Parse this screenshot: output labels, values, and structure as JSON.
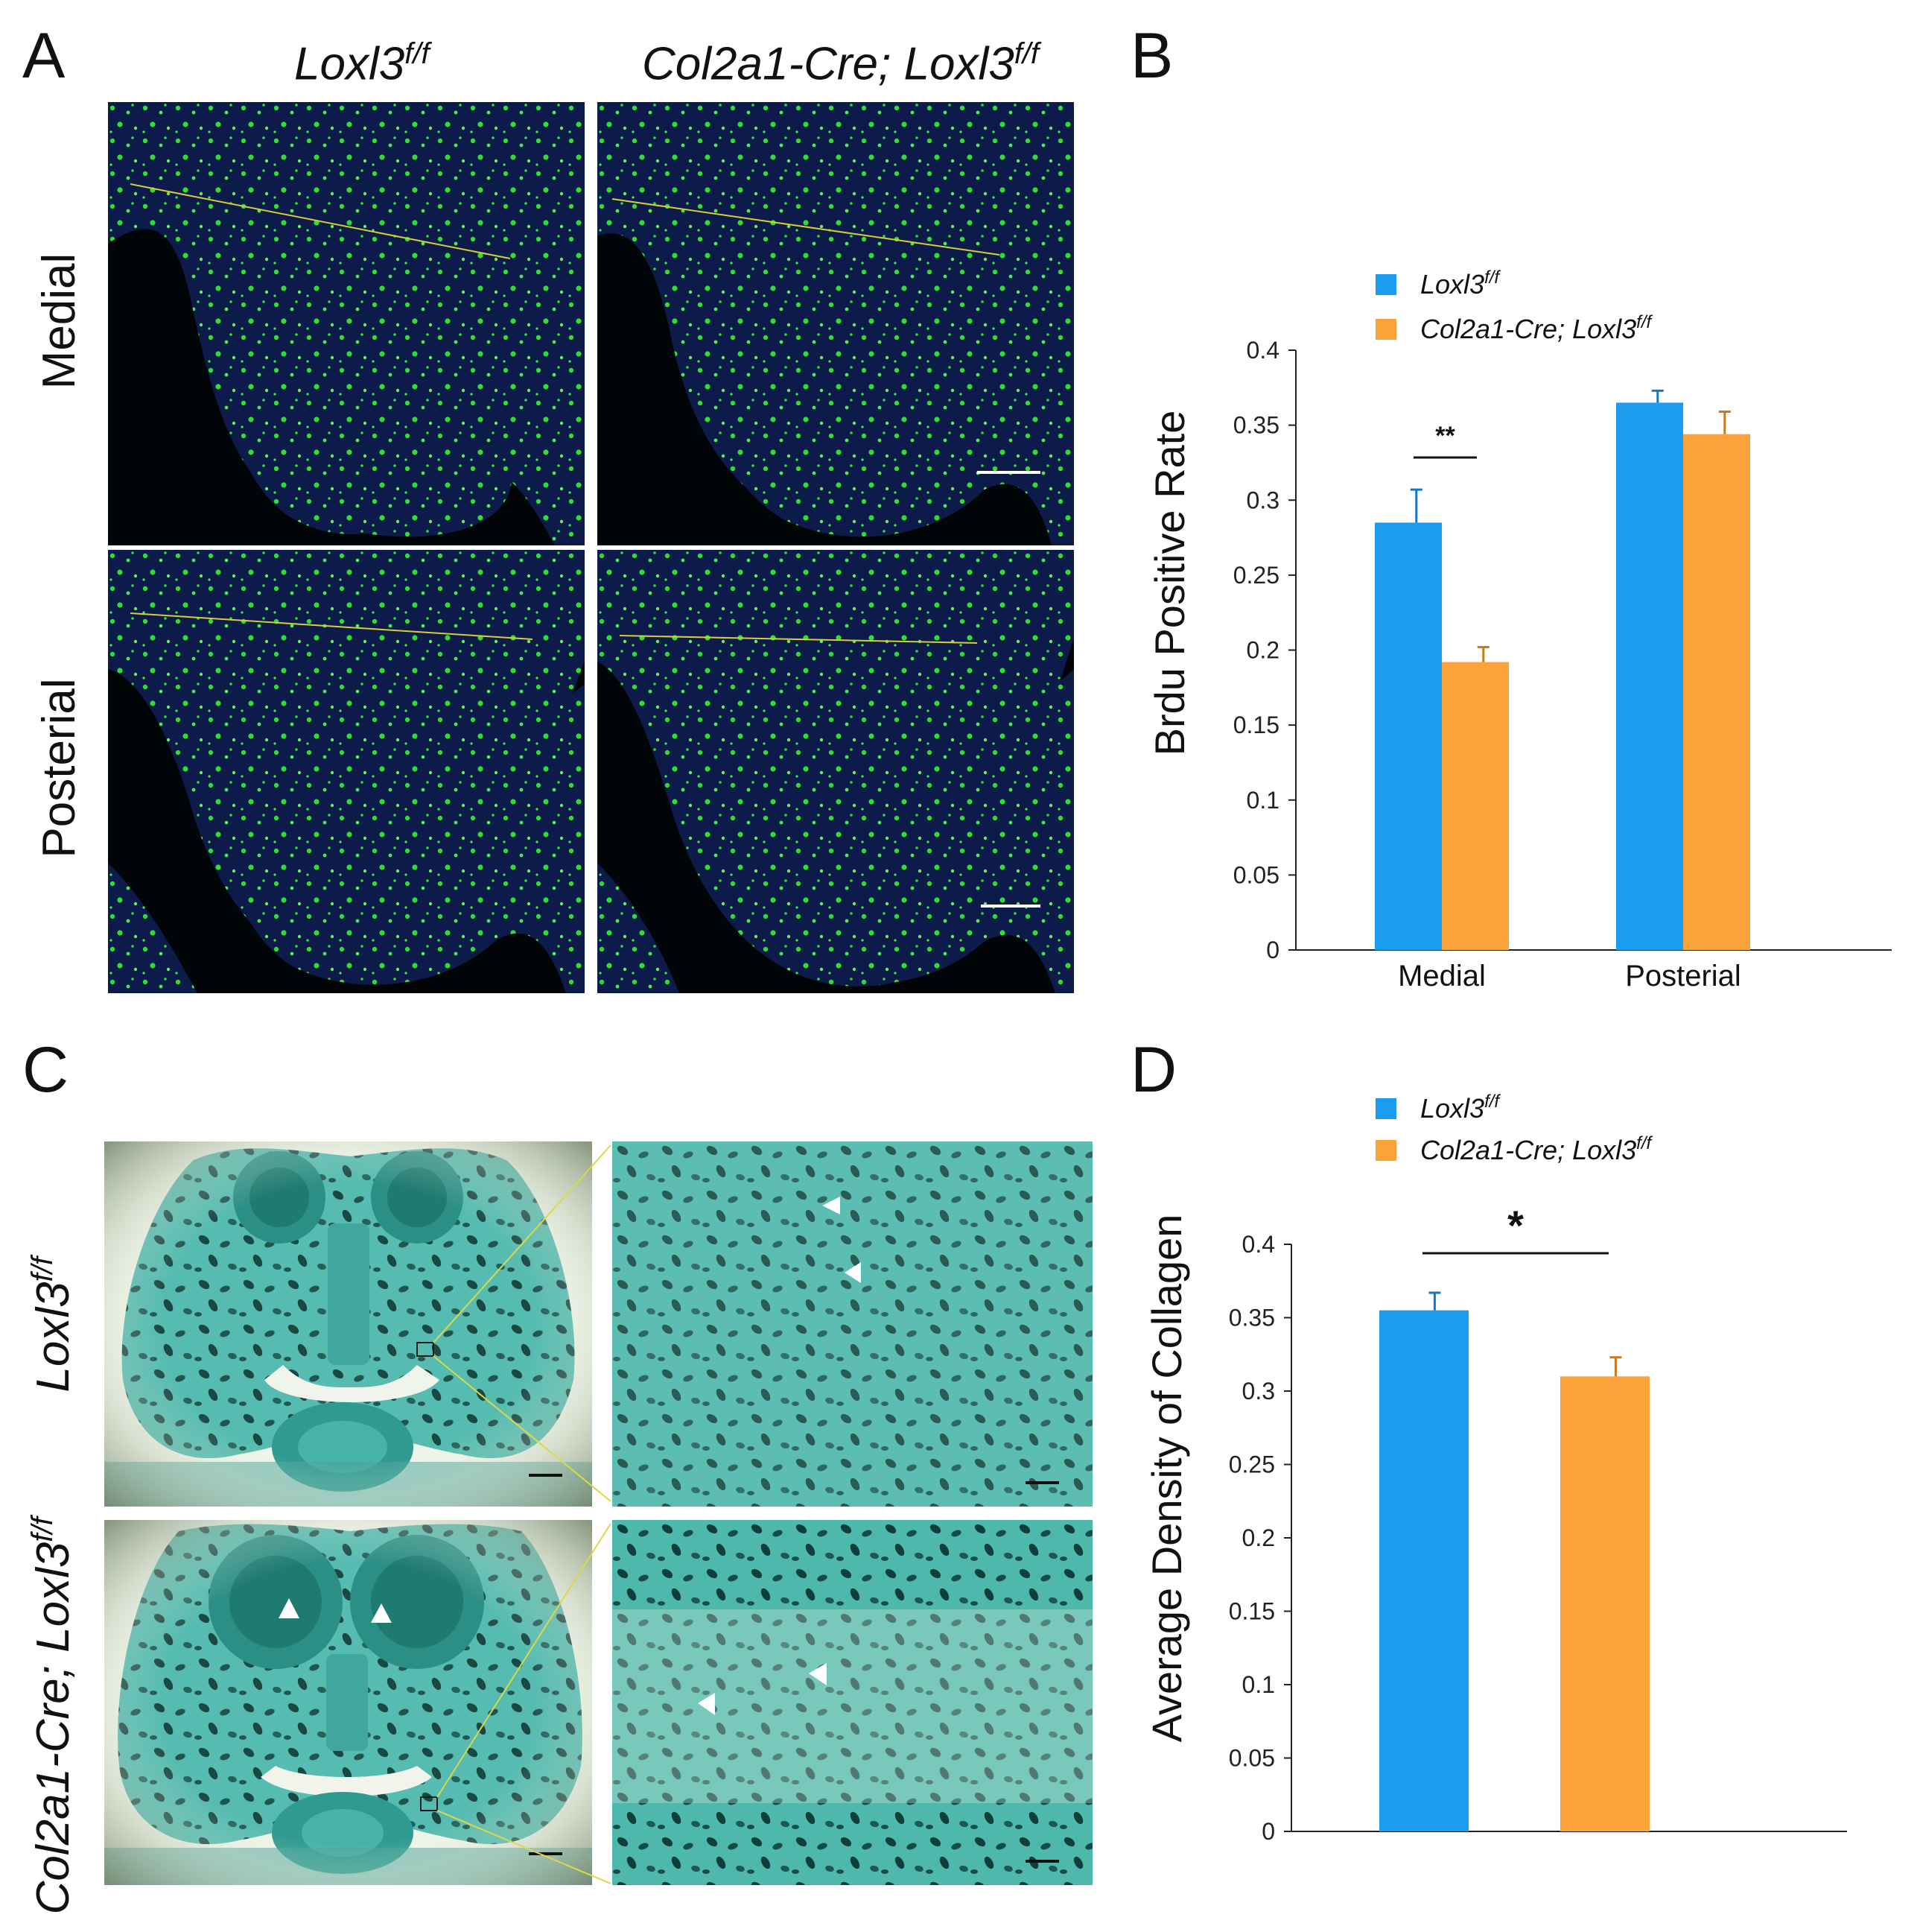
{
  "panels": {
    "a": {
      "letter": "A",
      "columns": [
        "Loxl3",
        "Col2a1-Cre; Loxl3"
      ],
      "column_superscript": "f/f",
      "rows": [
        "Medial",
        "Posterial"
      ]
    },
    "b": {
      "letter": "B"
    },
    "c": {
      "letter": "C",
      "rows": [
        "Loxl3",
        "Col2a1-Cre; Loxl3"
      ],
      "row_superscript": "f/f"
    },
    "d": {
      "letter": "D"
    }
  },
  "colors": {
    "series1": "#1a9cf0",
    "series2": "#fba23a",
    "fluor_green": "#2ee02e",
    "fluor_blue": "#0c1b4a",
    "stain_teal": "#3aa9a0",
    "stain_dark": "#0f3f3a",
    "guide_line": "#d6cd3a"
  },
  "chart_data": [
    {
      "type": "bar",
      "categories": [
        "Medial",
        "Posterial"
      ],
      "series": [
        {
          "name": "Loxl3",
          "name_sup": "f/f",
          "values": [
            0.285,
            0.365
          ],
          "errors": [
            0.022,
            0.008
          ]
        },
        {
          "name": "Col2a1-Cre; Loxl3",
          "name_sup": "f/f",
          "values": [
            0.192,
            0.344
          ],
          "errors": [
            0.01,
            0.015
          ]
        }
      ],
      "title": "",
      "xlabel": "",
      "ylabel": "Brdu Positive Rate",
      "ylim": [
        0,
        0.4
      ],
      "yticks": [
        "0",
        "0.05",
        "0.1",
        "0.15",
        "0.2",
        "0.25",
        "0.3",
        "0.35",
        "0.4"
      ],
      "grid": false,
      "legend": "top",
      "annotations": [
        {
          "text": "**",
          "between": [
            "Medial: Loxl3",
            "Medial: Col2a1-Cre; Loxl3"
          ]
        }
      ]
    },
    {
      "type": "bar",
      "categories": [
        ""
      ],
      "series": [
        {
          "name": "Loxl3",
          "name_sup": "f/f",
          "values": [
            0.355
          ],
          "errors": [
            0.012
          ]
        },
        {
          "name": "Col2a1-Cre; Loxl3",
          "name_sup": "f/f",
          "values": [
            0.31
          ],
          "errors": [
            0.013
          ]
        }
      ],
      "title": "",
      "xlabel": "",
      "ylabel": "Average Density of Collagen",
      "ylim": [
        0,
        0.4
      ],
      "yticks": [
        "0",
        "0.05",
        "0.1",
        "0.15",
        "0.2",
        "0.25",
        "0.3",
        "0.35",
        "0.4"
      ],
      "grid": false,
      "legend": "top",
      "annotations": [
        {
          "text": "*",
          "between": [
            "Loxl3",
            "Col2a1-Cre; Loxl3"
          ]
        }
      ]
    }
  ]
}
